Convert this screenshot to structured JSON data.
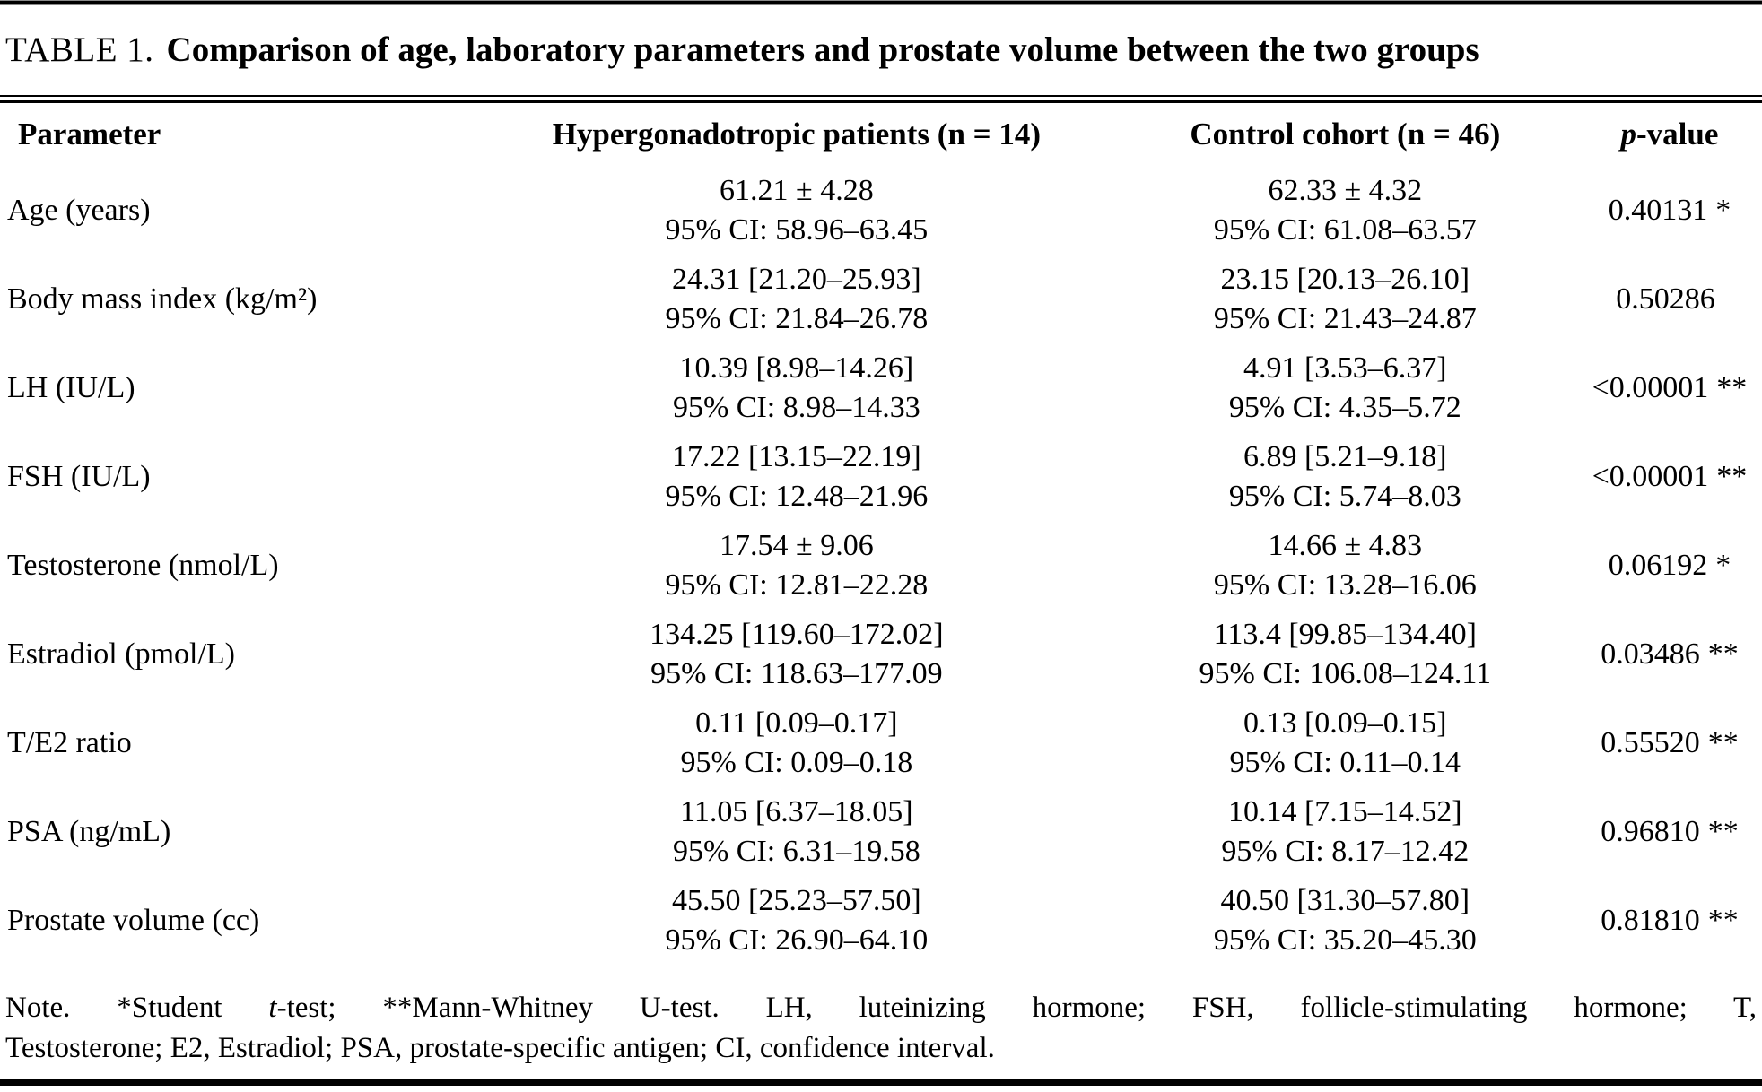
{
  "table": {
    "label": "TABLE 1.",
    "title": "Comparison of age, laboratory parameters and prostate volume between the two groups",
    "columns": {
      "parameter": "Parameter",
      "group1": "Hypergonadotropic patients (n = 14)",
      "group2": "Control cohort (n = 46)",
      "p_italic": "p",
      "p_rest": "-value"
    },
    "rows": [
      {
        "parameter": "Age (years)",
        "group1_value": "61.21 ± 4.28",
        "group1_ci": "95% CI: 58.96–63.45",
        "group2_value": "62.33 ± 4.32",
        "group2_ci": "95% CI: 61.08–63.57",
        "p_value": "0.40131",
        "p_marker": "*"
      },
      {
        "parameter": "Body mass index (kg/m²)",
        "group1_value": "24.31 [21.20–25.93]",
        "group1_ci": "95% CI: 21.84–26.78",
        "group2_value": "23.15 [20.13–26.10]",
        "group2_ci": "95% CI: 21.43–24.87",
        "p_value": "0.50286",
        "p_marker": ""
      },
      {
        "parameter": "LH (IU/L)",
        "group1_value": "10.39 [8.98–14.26]",
        "group1_ci": "95% CI: 8.98–14.33",
        "group2_value": "4.91 [3.53–6.37]",
        "group2_ci": "95% CI: 4.35–5.72",
        "p_value": "<0.00001",
        "p_marker": "**"
      },
      {
        "parameter": "FSH (IU/L)",
        "group1_value": "17.22 [13.15–22.19]",
        "group1_ci": "95% CI: 12.48–21.96",
        "group2_value": "6.89 [5.21–9.18]",
        "group2_ci": "95% CI: 5.74–8.03",
        "p_value": "<0.00001",
        "p_marker": "**"
      },
      {
        "parameter": "Testosterone (nmol/L)",
        "group1_value": "17.54 ± 9.06",
        "group1_ci": "95% CI: 12.81–22.28",
        "group2_value": "14.66 ± 4.83",
        "group2_ci": "95% CI: 13.28–16.06",
        "p_value": "0.06192",
        "p_marker": "*"
      },
      {
        "parameter": "Estradiol (pmol/L)",
        "group1_value": "134.25 [119.60–172.02]",
        "group1_ci": "95% CI: 118.63–177.09",
        "group2_value": "113.4 [99.85–134.40]",
        "group2_ci": "95% CI: 106.08–124.11",
        "p_value": "0.03486",
        "p_marker": "**"
      },
      {
        "parameter": "T/E2 ratio",
        "group1_value": "0.11 [0.09–0.17]",
        "group1_ci": "95% CI: 0.09–0.18",
        "group2_value": "0.13 [0.09–0.15]",
        "group2_ci": "95% CI: 0.11–0.14",
        "p_value": "0.55520",
        "p_marker": "**"
      },
      {
        "parameter": "PSA (ng/mL)",
        "group1_value": "11.05 [6.37–18.05]",
        "group1_ci": "95% CI: 6.31–19.58",
        "group2_value": "10.14 [7.15–14.52]",
        "group2_ci": "95% CI: 8.17–12.42",
        "p_value": "0.96810",
        "p_marker": "**"
      },
      {
        "parameter": "Prostate volume (cc)",
        "group1_value": "45.50 [25.23–57.50]",
        "group1_ci": "95% CI: 26.90–64.10",
        "group2_value": "40.50 [31.30–57.80]",
        "group2_ci": "95% CI: 35.20–45.30",
        "p_value": "0.81810",
        "p_marker": "**"
      }
    ],
    "note": {
      "line1_pre": "Note. *Student ",
      "line1_italic": "t",
      "line1_post": "-test; **Mann-Whitney U-test. LH, luteinizing hormone; FSH, follicle-stimulating hormone; T,",
      "line2": "Testosterone; E2, Estradiol; PSA, prostate-specific antigen; CI, confidence interval."
    }
  }
}
